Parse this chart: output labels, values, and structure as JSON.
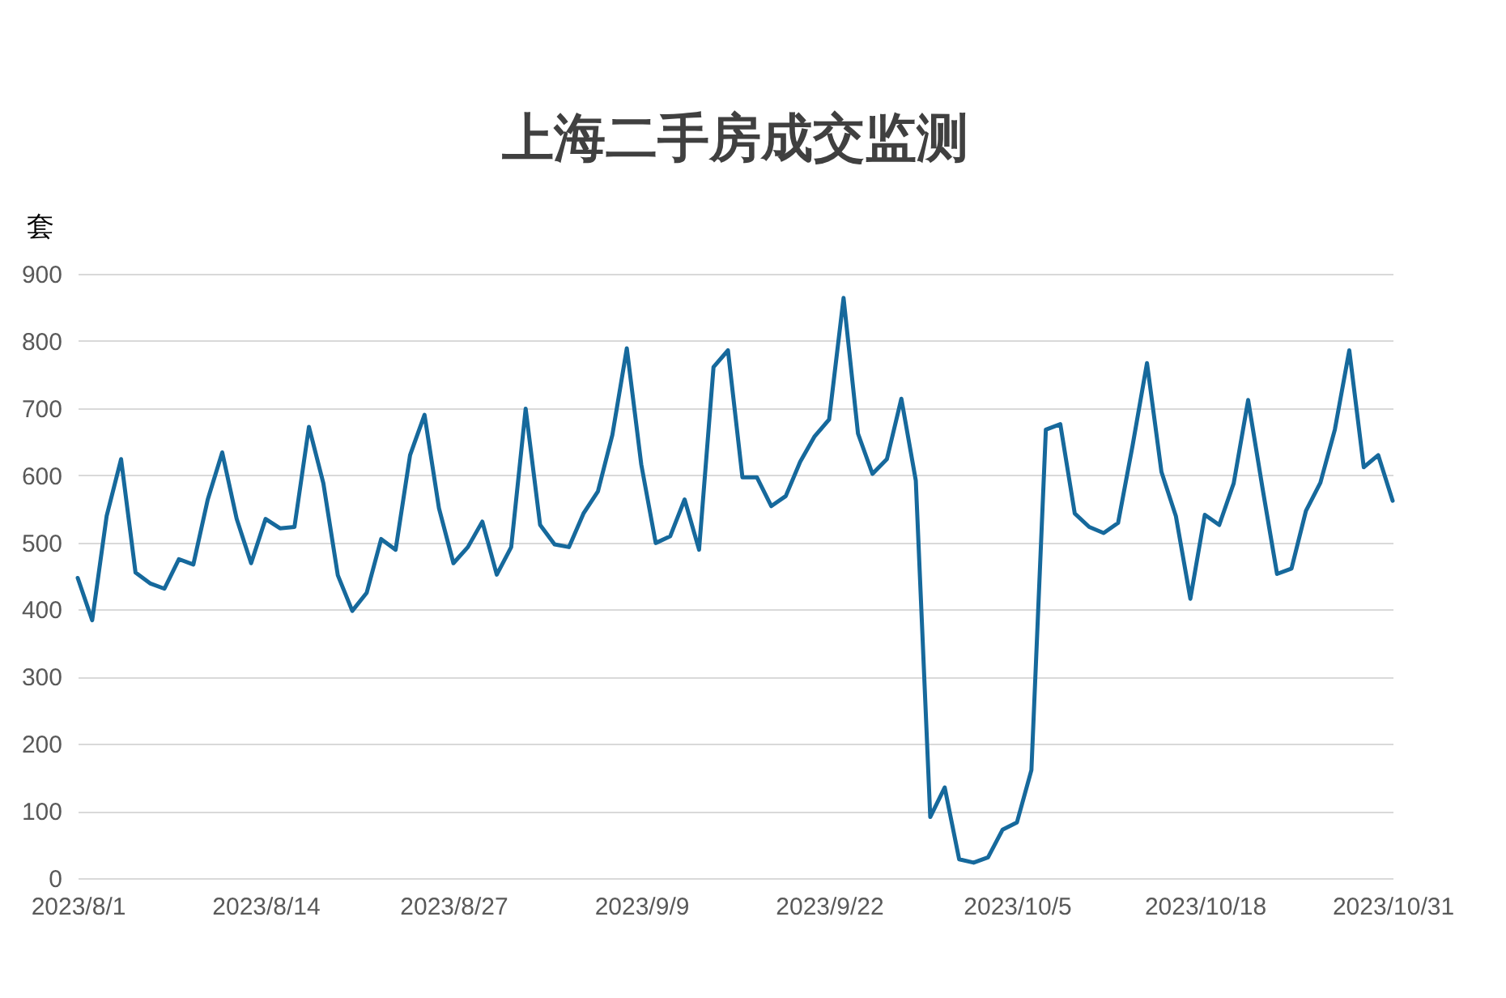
{
  "chart_data": {
    "type": "line",
    "title": "上海二手房成交监测",
    "ylabel": "套",
    "x": [
      "2023-08-01",
      "2023-08-02",
      "2023-08-03",
      "2023-08-04",
      "2023-08-05",
      "2023-08-06",
      "2023-08-07",
      "2023-08-08",
      "2023-08-09",
      "2023-08-10",
      "2023-08-11",
      "2023-08-12",
      "2023-08-13",
      "2023-08-14",
      "2023-08-15",
      "2023-08-16",
      "2023-08-17",
      "2023-08-18",
      "2023-08-19",
      "2023-08-20",
      "2023-08-21",
      "2023-08-22",
      "2023-08-23",
      "2023-08-24",
      "2023-08-25",
      "2023-08-26",
      "2023-08-27",
      "2023-08-28",
      "2023-08-29",
      "2023-08-30",
      "2023-08-31",
      "2023-09-01",
      "2023-09-02",
      "2023-09-03",
      "2023-09-04",
      "2023-09-05",
      "2023-09-06",
      "2023-09-07",
      "2023-09-08",
      "2023-09-09",
      "2023-09-10",
      "2023-09-11",
      "2023-09-12",
      "2023-09-13",
      "2023-09-14",
      "2023-09-15",
      "2023-09-16",
      "2023-09-17",
      "2023-09-18",
      "2023-09-19",
      "2023-09-20",
      "2023-09-21",
      "2023-09-22",
      "2023-09-23",
      "2023-09-24",
      "2023-09-25",
      "2023-09-26",
      "2023-09-27",
      "2023-09-28",
      "2023-09-29",
      "2023-09-30",
      "2023-10-01",
      "2023-10-02",
      "2023-10-03",
      "2023-10-04",
      "2023-10-05",
      "2023-10-06",
      "2023-10-07",
      "2023-10-08",
      "2023-10-09",
      "2023-10-10",
      "2023-10-11",
      "2023-10-12",
      "2023-10-13",
      "2023-10-14",
      "2023-10-15",
      "2023-10-16",
      "2023-10-17",
      "2023-10-18",
      "2023-10-19",
      "2023-10-20",
      "2023-10-21",
      "2023-10-22",
      "2023-10-23",
      "2023-10-24",
      "2023-10-25",
      "2023-10-26",
      "2023-10-27",
      "2023-10-28",
      "2023-10-29",
      "2023-10-30",
      "2023-10-31"
    ],
    "series": [
      {
        "color": "#16699c",
        "values": [
          447,
          384,
          539,
          624,
          455,
          439,
          431,
          475,
          467,
          564,
          634,
          535,
          469,
          535,
          521,
          523,
          672,
          588,
          451,
          398,
          425,
          505,
          489,
          630,
          690,
          551,
          469,
          493,
          531,
          452,
          493,
          699,
          526,
          497,
          493,
          543,
          576,
          660,
          789,
          616,
          499,
          509,
          564,
          489,
          761,
          786,
          597,
          597,
          554,
          569,
          620,
          658,
          683,
          864,
          662,
          602,
          624,
          714,
          592,
          91,
          135,
          28,
          23,
          31,
          72,
          83,
          161,
          668,
          676,
          543,
          523,
          514,
          529,
          644,
          767,
          605,
          539,
          416,
          541,
          526,
          588,
          712,
          580,
          453,
          461,
          547,
          589,
          668,
          786,
          612,
          630,
          562
        ]
      }
    ],
    "xlim": [
      "2023-08-01",
      "2023-10-31"
    ],
    "xticks": [
      {
        "value": "2023-08-01",
        "label": "2023/8/1"
      },
      {
        "value": "2023-08-14",
        "label": "2023/8/14"
      },
      {
        "value": "2023-08-27",
        "label": "2023/8/27"
      },
      {
        "value": "2023-09-09",
        "label": "2023/9/9"
      },
      {
        "value": "2023-09-22",
        "label": "2023/9/22"
      },
      {
        "value": "2023-10-05",
        "label": "2023/10/5"
      },
      {
        "value": "2023-10-18",
        "label": "2023/10/18"
      },
      {
        "value": "2023-10-31",
        "label": "2023/10/31"
      }
    ],
    "ylim": [
      0,
      900
    ],
    "yticks": [
      0,
      100,
      200,
      300,
      400,
      500,
      600,
      700,
      800,
      900
    ],
    "grid": "y",
    "marker": "none",
    "line_style": "solid"
  }
}
